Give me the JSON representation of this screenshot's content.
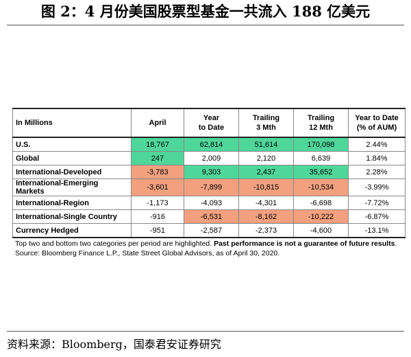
{
  "title": "图 2：4 月份美国股票型基金一共流入 188 亿美元",
  "table": {
    "headers": [
      "In Millions",
      "April",
      "Year to Date",
      "Trailing 3 Mth",
      "Trailing 12 Mth",
      "Year to Date (% of AUM)"
    ],
    "header_lines": [
      [
        "In Millions",
        ""
      ],
      [
        "April",
        ""
      ],
      [
        "Year",
        "to Date"
      ],
      [
        "Trailing",
        "3 Mth"
      ],
      [
        "Trailing",
        "12 Mth"
      ],
      [
        "Year to Date",
        "(% of AUM)"
      ]
    ],
    "rows": [
      {
        "label": "U.S.",
        "april": "18,767",
        "ytd": "62,814",
        "t3": "51,614",
        "t12": "170,098",
        "pct": "2.44%"
      },
      {
        "label": "Global",
        "april": "247",
        "ytd": "2,009",
        "t3": "2,120",
        "t12": "6,639",
        "pct": "1.84%"
      },
      {
        "label": "International-Developed",
        "april": "-3,783",
        "ytd": "9,303",
        "t3": "2,437",
        "t12": "35,652",
        "pct": "2.28%"
      },
      {
        "label": "International-Emerging Markets",
        "april": "-3,601",
        "ytd": "-7,899",
        "t3": "-10,815",
        "t12": "-10,534",
        "pct": "-3.99%"
      },
      {
        "label": "International-Region",
        "april": "-1,173",
        "ytd": "-4,093",
        "t3": "-4,301",
        "t12": "-6,698",
        "pct": "-7.72%"
      },
      {
        "label": "International-Single Country",
        "april": "-916",
        "ytd": "-6,531",
        "t3": "-8,162",
        "t12": "-10,222",
        "pct": "-6.87%"
      },
      {
        "label": "Currency Hedged",
        "april": "-951",
        "ytd": "-2,587",
        "t3": "-2,373",
        "t12": "-4,600",
        "pct": "-13.1%"
      }
    ],
    "highlight_colors": {
      "top": "#4fd69a",
      "bottom": "#f3a07e"
    }
  },
  "note": {
    "part1": "Top two and bottom two categories per period are highlighted. ",
    "bold": "Past performance is not a guarantee of future results",
    "part2": ". Source: Bloomberg Finance L.P., State Street Global Advisors, as of April 30, 2020."
  },
  "source": "资料来源：Bloomberg，国泰君安证券研究"
}
